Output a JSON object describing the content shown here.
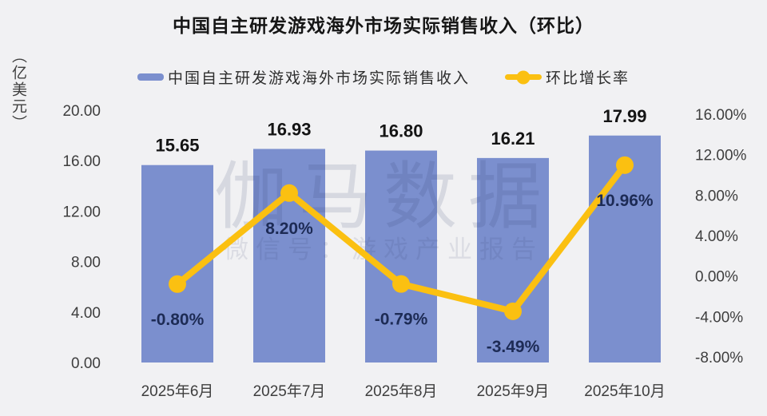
{
  "colors": {
    "background": "#F1F1F3",
    "bar": "#7B8FCE",
    "line": "#FBC011",
    "bar_label": "#141414",
    "pct_label": "#1D2B55",
    "axis_text": "#3E3E3E",
    "title_text": "#161616"
  },
  "watermark": {
    "main": "伽马数据",
    "sub": "微信号：游戏产业报告"
  },
  "chart_data": {
    "type": "combo-bar-line",
    "title": "中国自主研发游戏海外市场实际销售收入（环比）",
    "legend_position": "top",
    "grid": false,
    "categories": [
      "2025年6月",
      "2025年7月",
      "2025年8月",
      "2025年9月",
      "2025年10月"
    ],
    "series": [
      {
        "name": "中国自主研发游戏海外市场实际销售收入",
        "type": "bar",
        "axis": "left",
        "values": [
          15.65,
          16.93,
          16.8,
          16.21,
          17.99
        ],
        "labels": [
          "15.65",
          "16.93",
          "16.80",
          "16.21",
          "17.99"
        ]
      },
      {
        "name": "环比增长率",
        "type": "line",
        "axis": "right",
        "values": [
          -0.8,
          8.2,
          -0.79,
          -3.49,
          10.96
        ],
        "labels": [
          "-0.80%",
          "8.20%",
          "-0.79%",
          "-3.49%",
          "10.96%"
        ]
      }
    ],
    "left_axis": {
      "unit": "（亿美元）",
      "min": 0,
      "max": 20,
      "ticks": [
        {
          "value": 20,
          "label": "20.00"
        },
        {
          "value": 16,
          "label": "16.00"
        },
        {
          "value": 12,
          "label": "12.00"
        },
        {
          "value": 8,
          "label": "8.00"
        },
        {
          "value": 4,
          "label": "4.00"
        },
        {
          "value": 0,
          "label": "0.00"
        }
      ]
    },
    "right_axis": {
      "min": -8,
      "max": 16,
      "ticks": [
        {
          "value": 16,
          "label": "16.00%"
        },
        {
          "value": 12,
          "label": "12.00%"
        },
        {
          "value": 8,
          "label": "8.00%"
        },
        {
          "value": 4,
          "label": "4.00%"
        },
        {
          "value": 0,
          "label": "0.00%"
        },
        {
          "value": -4,
          "label": "-4.00%"
        },
        {
          "value": -8,
          "label": "-8.00%"
        }
      ]
    }
  }
}
